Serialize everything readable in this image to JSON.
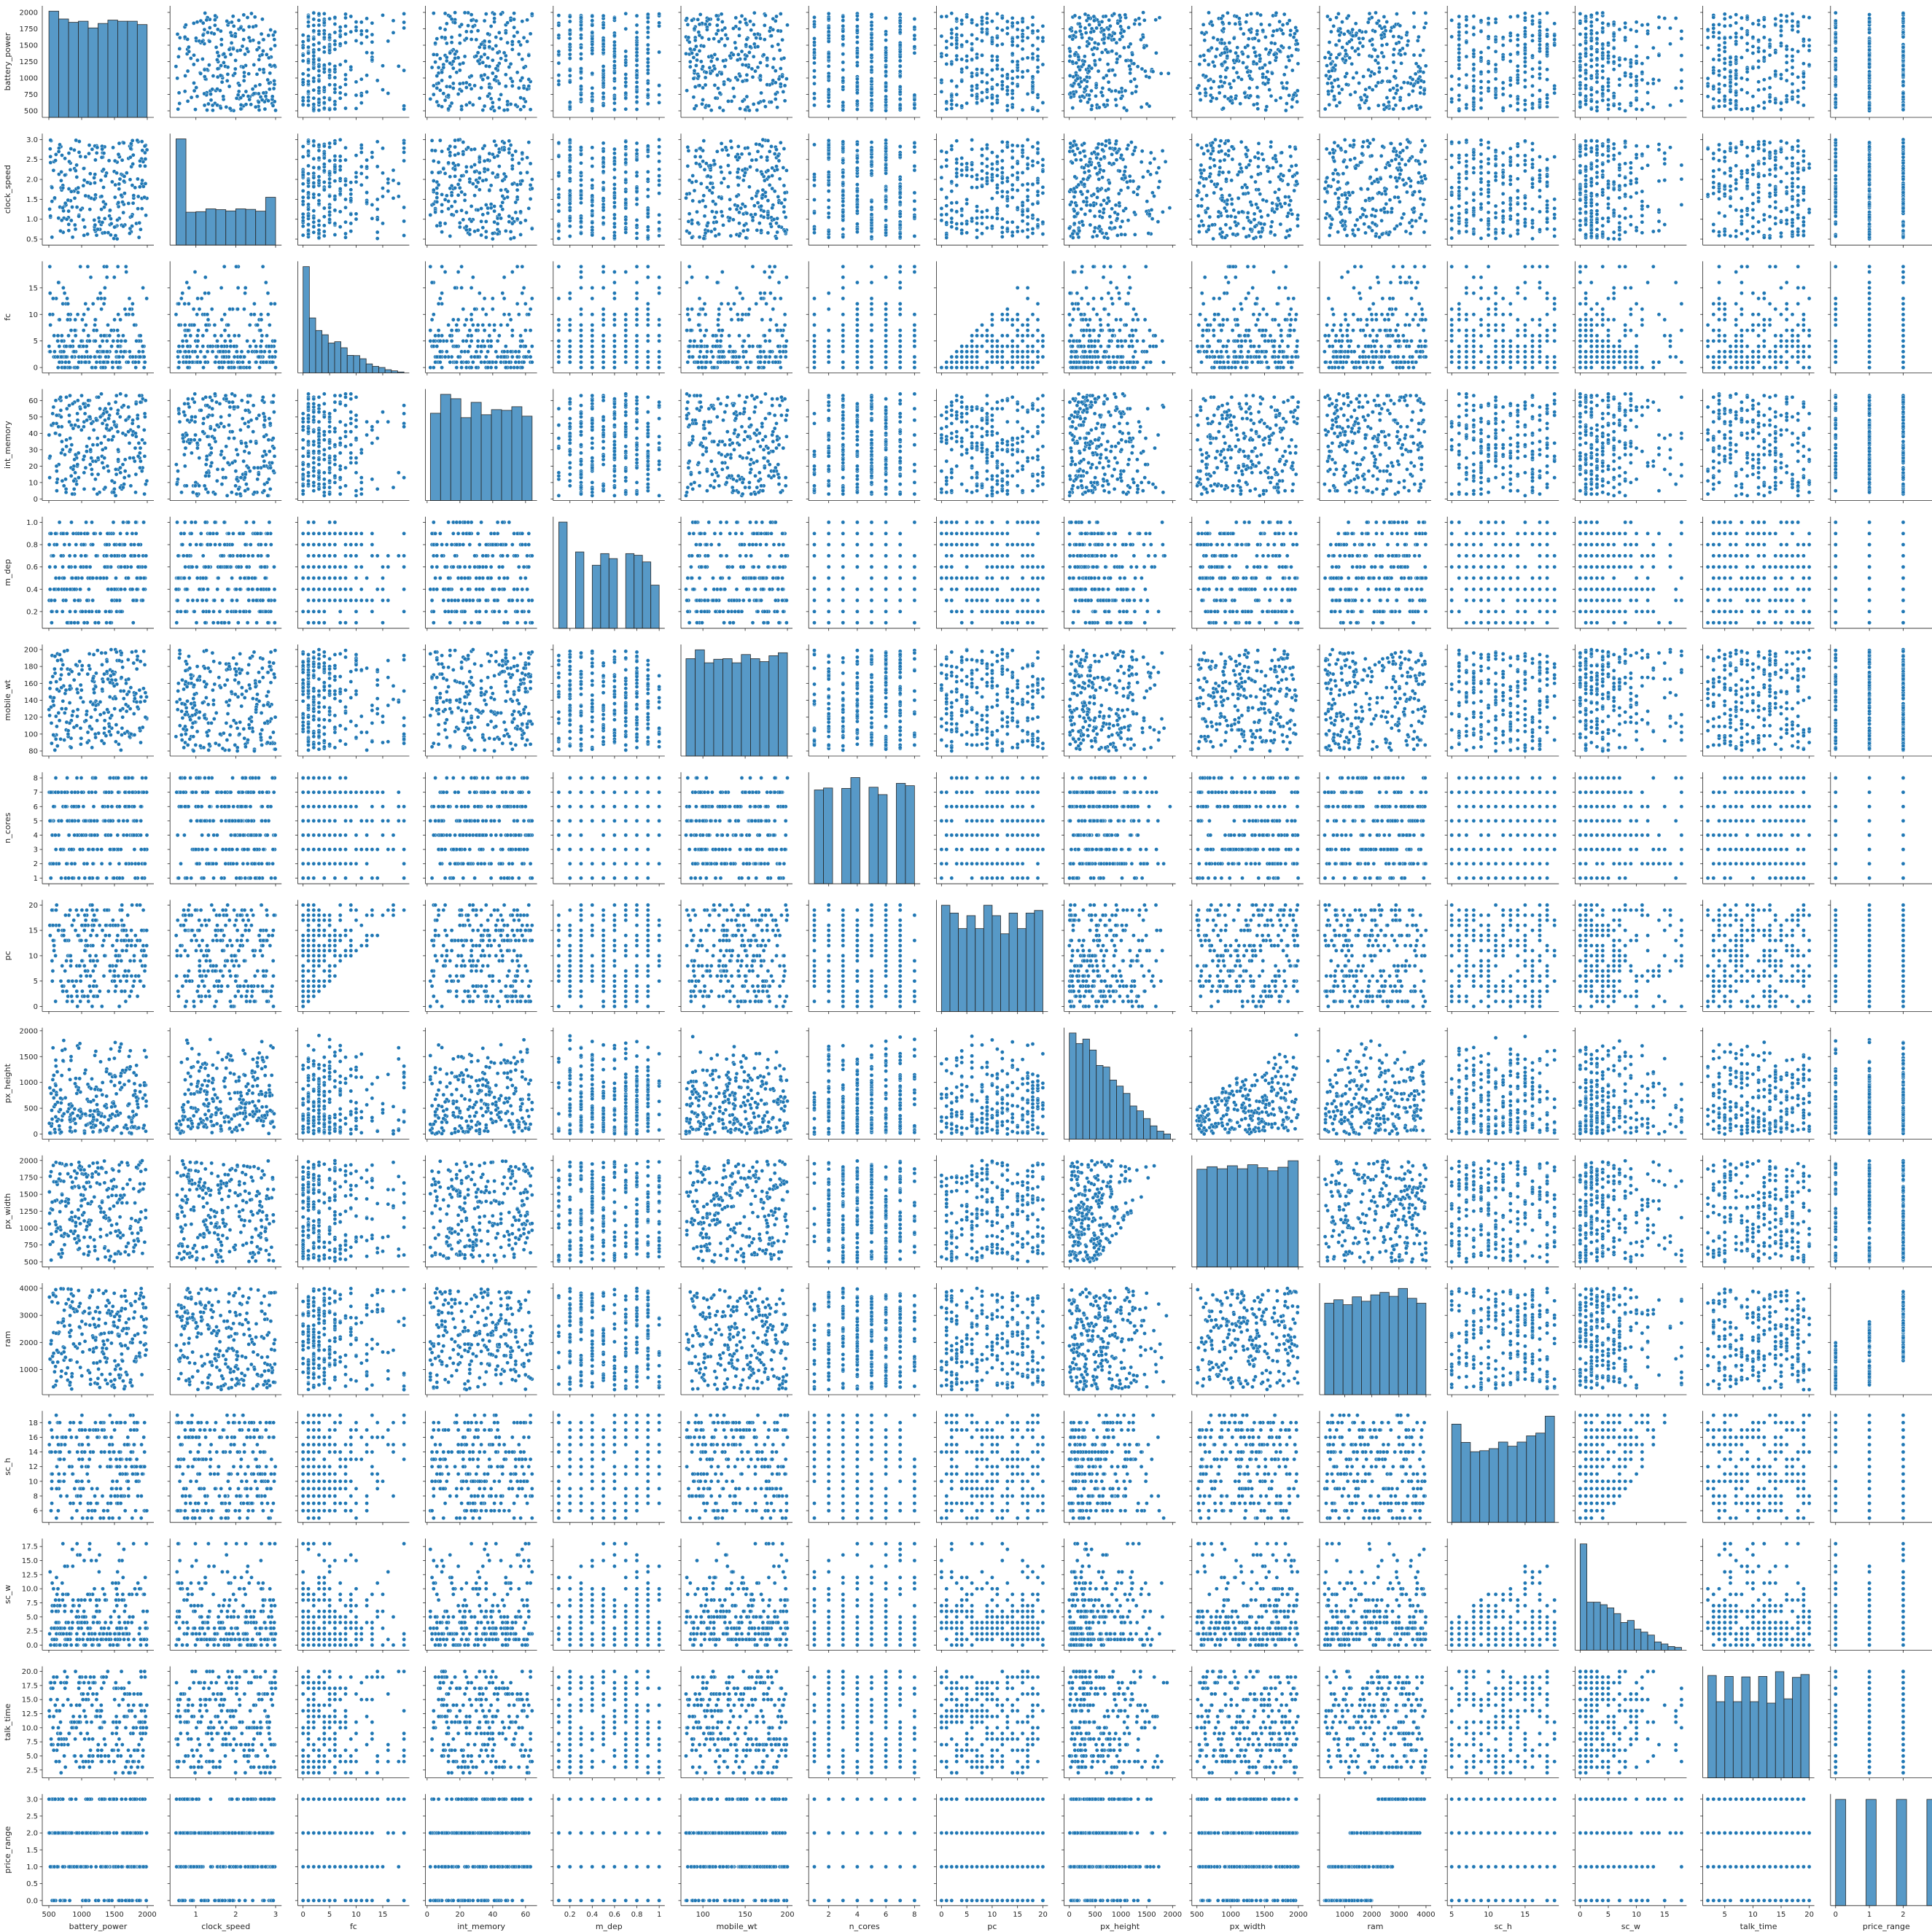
{
  "chart_data": {
    "type": "scatter",
    "kind": "pairplot",
    "colors": {
      "marker": "#1f77b4",
      "marker_edge": "#ffffff",
      "hist_fill": "#1f77b4",
      "hist_edge": "#2a2a2a",
      "axis": "#262626"
    },
    "variables": [
      {
        "name": "battery_power",
        "min": 501,
        "max": 1998,
        "discrete": false,
        "xlim": [
          400,
          2100
        ],
        "xticks": [
          500,
          1000,
          1500,
          2000
        ],
        "ylim": [
          400,
          2100
        ],
        "yticks": [
          500,
          750,
          1000,
          1250,
          1500,
          1750,
          2000
        ],
        "ytick_labels": [
          "500",
          "750",
          "1000",
          "1250",
          "1500",
          "1750",
          "2000"
        ],
        "hist": [
          95,
          88,
          85,
          86,
          80,
          84,
          87,
          86,
          86,
          83
        ]
      },
      {
        "name": "clock_speed",
        "min": 0.5,
        "max": 3.0,
        "discrete": false,
        "xlim": [
          0.35,
          3.15
        ],
        "xticks": [
          1,
          2,
          3
        ],
        "ylim": [
          0.35,
          3.15
        ],
        "yticks": [
          0.5,
          1.0,
          1.5,
          2.0,
          2.5,
          3.0
        ],
        "ytick_labels": [
          "0.5",
          "1.0",
          "1.5",
          "2.0",
          "2.5",
          "3.0"
        ],
        "hist": [
          413,
          128,
          130,
          141,
          138,
          133,
          141,
          139,
          132,
          186
        ]
      },
      {
        "name": "fc",
        "min": 0,
        "max": 19,
        "discrete": true,
        "skew": "exp",
        "xlim": [
          -1,
          20
        ],
        "xticks": [
          0,
          5,
          10,
          15
        ],
        "ylim": [
          -1,
          20
        ],
        "yticks": [
          0,
          5,
          10,
          15
        ],
        "ytick_labels": [
          "0",
          "5",
          "10",
          "15"
        ],
        "hist": [
          474,
          245,
          189,
          170,
          133,
          139,
          112,
          78,
          77,
          63,
          40,
          29,
          24,
          14,
          9,
          4
        ]
      },
      {
        "name": "int_memory",
        "min": 2,
        "max": 64,
        "discrete": true,
        "xlim": [
          -1,
          67
        ],
        "xticks": [
          0,
          20,
          40,
          60
        ],
        "ylim": [
          -1,
          67
        ],
        "yticks": [
          0,
          10,
          20,
          30,
          40,
          50,
          60
        ],
        "ytick_labels": [
          "0",
          "10",
          "20",
          "30",
          "40",
          "50",
          "60"
        ],
        "hist": [
          120,
          146,
          140,
          114,
          135,
          118,
          125,
          124,
          129,
          116
        ]
      },
      {
        "name": "m_dep",
        "min": 0.1,
        "max": 1.0,
        "discrete": true,
        "step": 0.1,
        "xlim": [
          0.05,
          1.05
        ],
        "xticks": [
          0.2,
          0.4,
          0.6,
          0.8,
          1.0
        ],
        "ylim": [
          0.05,
          1.05
        ],
        "yticks": [
          0.2,
          0.4,
          0.6,
          0.8,
          1.0
        ],
        "ytick_labels": [
          "0.2",
          "0.4",
          "0.6",
          "0.8",
          "1.0"
        ],
        "hist": [
          320,
          0,
          230,
          0,
          190,
          225,
          210,
          0,
          225,
          220,
          200,
          130
        ]
      },
      {
        "name": "mobile_wt",
        "min": 80,
        "max": 200,
        "discrete": true,
        "xlim": [
          74,
          206
        ],
        "xticks": [
          100,
          150,
          200
        ],
        "ylim": [
          74,
          206
        ],
        "yticks": [
          80,
          100,
          120,
          140,
          160,
          180,
          200
        ],
        "ytick_labels": [
          "80",
          "100",
          "120",
          "140",
          "160",
          "180",
          "200"
        ],
        "hist": [
          165,
          180,
          158,
          164,
          165,
          158,
          172,
          165,
          160,
          170,
          175
        ]
      },
      {
        "name": "n_cores",
        "min": 1,
        "max": 8,
        "discrete": true,
        "step": 1,
        "xlim": [
          0.6,
          8.4
        ],
        "xticks": [
          2,
          4,
          6,
          8
        ],
        "ylim": [
          0.6,
          8.4
        ],
        "yticks": [
          1,
          2,
          3,
          4,
          5,
          6,
          7,
          8
        ],
        "ytick_labels": [
          "1",
          "2",
          "3",
          "4",
          "5",
          "6",
          "7",
          "8"
        ],
        "hist": [
          242,
          247,
          0,
          246,
          274,
          0,
          249,
          230,
          0,
          259,
          253
        ]
      },
      {
        "name": "pc",
        "min": 0,
        "max": 20,
        "discrete": true,
        "step": 1,
        "xlim": [
          -1,
          21
        ],
        "xticks": [
          0,
          5,
          10,
          15,
          20
        ],
        "ylim": [
          -1,
          21
        ],
        "yticks": [
          0,
          5,
          10,
          15,
          20
        ],
        "ytick_labels": [
          "0",
          "5",
          "10",
          "15",
          "20"
        ],
        "hist": [
          205,
          190,
          160,
          185,
          160,
          205,
          185,
          150,
          190,
          160,
          190,
          195
        ]
      },
      {
        "name": "px_height",
        "min": 0,
        "max": 1960,
        "discrete": false,
        "skew": "linear",
        "xlim": [
          -100,
          2060
        ],
        "xticks": [
          0,
          500,
          1000,
          1500,
          2000
        ],
        "ylim": [
          -100,
          2060
        ],
        "yticks": [
          0,
          500,
          1000,
          1500,
          2000
        ],
        "ytick_labels": [
          "0",
          "500",
          "1000",
          "1500",
          "2000"
        ],
        "hist": [
          262,
          236,
          247,
          220,
          182,
          178,
          146,
          131,
          113,
          82,
          70,
          51,
          33,
          20,
          13
        ]
      },
      {
        "name": "px_width",
        "min": 500,
        "max": 1998,
        "discrete": false,
        "xlim": [
          425,
          2075
        ],
        "xticks": [
          500,
          1000,
          1500,
          2000
        ],
        "ylim": [
          425,
          2075
        ],
        "yticks": [
          500,
          750,
          1000,
          1250,
          1500,
          1750,
          2000
        ],
        "ytick_labels": [
          "500",
          "750",
          "1000",
          "1250",
          "1500",
          "1750",
          "2000"
        ],
        "hist": [
          195,
          200,
          196,
          202,
          196,
          204,
          198,
          192,
          199,
          212
        ]
      },
      {
        "name": "ram",
        "min": 256,
        "max": 3998,
        "discrete": false,
        "xlim": [
          70,
          4190
        ],
        "xticks": [
          1000,
          2000,
          3000,
          4000
        ],
        "ylim": [
          70,
          4190
        ],
        "yticks": [
          1000,
          2000,
          3000,
          4000
        ],
        "ytick_labels": [
          "1000",
          "2000",
          "3000",
          "4000"
        ],
        "hist": [
          186,
          193,
          183,
          199,
          190,
          203,
          208,
          200,
          216,
          196,
          186
        ]
      },
      {
        "name": "sc_h",
        "min": 5,
        "max": 19,
        "discrete": true,
        "step": 1,
        "xlim": [
          4.4,
          19.6
        ],
        "xticks": [
          5,
          10,
          15
        ],
        "ylim": [
          4.4,
          19.6
        ],
        "yticks": [
          6,
          8,
          10,
          12,
          14,
          16,
          18
        ],
        "ytick_labels": [
          "6",
          "8",
          "10",
          "12",
          "14",
          "16",
          "18"
        ],
        "hist": [
          285,
          232,
          205,
          208,
          214,
          233,
          221,
          233,
          251,
          259,
          308
        ]
      },
      {
        "name": "sc_w",
        "min": 0,
        "max": 18,
        "discrete": true,
        "skew": "exp",
        "xlim": [
          -0.9,
          18.9
        ],
        "xticks": [
          0,
          5,
          10,
          15
        ],
        "ylim": [
          -0.9,
          18.9
        ],
        "yticks": [
          0,
          2.5,
          5.0,
          7.5,
          10.0,
          12.5,
          15.0,
          17.5
        ],
        "ytick_labels": [
          "0.0",
          "2.5",
          "5.0",
          "7.5",
          "10.0",
          "12.5",
          "15.0",
          "17.5"
        ],
        "hist": [
          465,
          210,
          210,
          199,
          185,
          160,
          121,
          130,
          92,
          79,
          66,
          36,
          27,
          16,
          12
        ]
      },
      {
        "name": "talk_time",
        "min": 2,
        "max": 20,
        "discrete": true,
        "step": 1,
        "xlim": [
          1.1,
          20.9
        ],
        "xticks": [
          5,
          10,
          15,
          20
        ],
        "ylim": [
          1.1,
          20.9
        ],
        "yticks": [
          2.5,
          5.0,
          7.5,
          10.0,
          12.5,
          15.0,
          17.5,
          20.0
        ],
        "ytick_labels": [
          "2.5",
          "5.0",
          "7.5",
          "10.0",
          "12.5",
          "15.0",
          "17.5",
          "20.0"
        ],
        "hist": [
          215,
          160,
          213,
          160,
          212,
          160,
          213,
          157,
          223,
          166,
          211,
          217
        ]
      },
      {
        "name": "price_range",
        "min": 0,
        "max": 3,
        "discrete": true,
        "step": 1,
        "xlim": [
          -0.15,
          3.15
        ],
        "xticks": [
          0,
          1,
          2,
          3
        ],
        "ylim": [
          -0.15,
          3.15
        ],
        "yticks": [
          0,
          0.5,
          1.0,
          1.5,
          2.0,
          2.5,
          3.0
        ],
        "ytick_labels": [
          "0.0",
          "0.5",
          "1.0",
          "1.5",
          "2.0",
          "2.5",
          "3.0"
        ],
        "hist": [
          500,
          0,
          0,
          500,
          0,
          0,
          500,
          0,
          0,
          500
        ]
      }
    ],
    "relations": [
      {
        "x": "pc",
        "y": "fc",
        "kind": "fc_le_pc"
      },
      {
        "x": "px_width",
        "y": "px_height",
        "kind": "pxh_le_pxw"
      },
      {
        "x": "sc_h",
        "y": "sc_w",
        "kind": "scw_le_sch"
      },
      {
        "x": "ram",
        "y": "price_range",
        "kind": "ram_price",
        "ranges": [
          [
            256,
            2000
          ],
          [
            400,
            2800
          ],
          [
            1200,
            3900
          ],
          [
            2200,
            3998
          ]
        ]
      }
    ],
    "grid": false,
    "legend": "none"
  }
}
